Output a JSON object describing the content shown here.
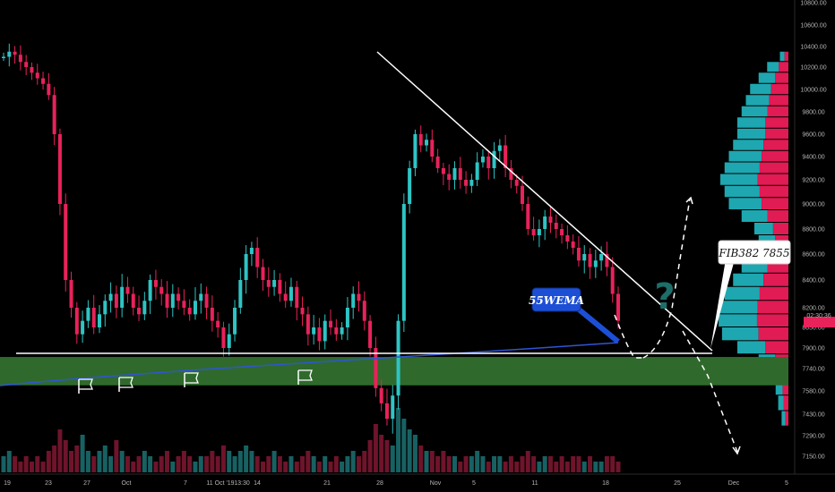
{
  "chart_data": {
    "type": "candlestick",
    "colors": {
      "up": "#2ec4c4",
      "down": "#e8225a",
      "support_zone": "#2f6a2c",
      "ema": "#2f55d4",
      "current_price_bg": "#e8225a",
      "volume_profile_up": "#1ea7b0",
      "volume_profile_down": "#e11b54",
      "background": "#000000"
    },
    "y_axis": {
      "scale": "linear",
      "range": [
        7100,
        10880
      ],
      "tick_labels": [
        "10800.00",
        "10600.00",
        "10400.00",
        "10200.00",
        "10000.00",
        "9800.00",
        "9600.00",
        "9400.00",
        "9200.00",
        "9000.00",
        "8800.00",
        "8600.00",
        "8400.00",
        "8200.00",
        "8050.00",
        "7900.00",
        "7740.00",
        "7580.00",
        "7430.00",
        "7290.00",
        "7150.00"
      ],
      "current_price_label": "02:30:36"
    },
    "x_axis": {
      "tick_labels": [
        "19",
        "23",
        "27",
        "Oct",
        "7",
        "11 Oct '19",
        "13:30",
        "14",
        "21",
        "28",
        "Nov",
        "5",
        "11",
        "18",
        "25",
        "Dec",
        "5"
      ],
      "selected_label": "11 Oct '19   13:30"
    },
    "price_series": [
      10300,
      10350,
      10320,
      10250,
      10200,
      10150,
      10100,
      10050,
      9950,
      9600,
      9000,
      8400,
      8200,
      8000,
      8100,
      8200,
      8050,
      8150,
      8250,
      8300,
      8200,
      8350,
      8300,
      8200,
      8150,
      8250,
      8400,
      8350,
      8300,
      8200,
      8300,
      8250,
      8200,
      8150,
      8250,
      8300,
      8200,
      8100,
      8050,
      7900,
      8000,
      8200,
      8400,
      8600,
      8650,
      8500,
      8400,
      8350,
      8400,
      8300,
      8250,
      8350,
      8200,
      8150,
      8000,
      8050,
      7950,
      8100,
      8050,
      8000,
      8050,
      8200,
      8300,
      8250,
      8100,
      7900,
      7600,
      7500,
      7400,
      7550,
      8100,
      9000,
      9300,
      9600,
      9500,
      9550,
      9400,
      9300,
      9250,
      9200,
      9300,
      9200,
      9150,
      9200,
      9350,
      9400,
      9300,
      9450,
      9500,
      9300,
      9200,
      9150,
      9000,
      8800,
      8750,
      8800,
      8900,
      8850,
      8800,
      8750,
      8700,
      8650,
      8550,
      8600,
      8500,
      8550,
      8600,
      8500,
      8300,
      8100
    ],
    "volume_series": [
      3,
      4,
      3,
      2,
      3,
      2,
      3,
      2,
      4,
      5,
      8,
      6,
      4,
      5,
      7,
      4,
      3,
      4,
      5,
      3,
      6,
      4,
      3,
      2,
      3,
      4,
      3,
      2,
      3,
      4,
      2,
      3,
      4,
      3,
      2,
      3,
      3,
      4,
      3,
      5,
      4,
      3,
      4,
      5,
      4,
      3,
      2,
      3,
      4,
      3,
      2,
      3,
      2,
      3,
      4,
      3,
      2,
      3,
      2,
      3,
      2,
      3,
      4,
      3,
      4,
      6,
      9,
      7,
      6,
      5,
      12,
      10,
      8,
      7,
      5,
      4,
      4,
      3,
      4,
      3,
      3,
      2,
      3,
      3,
      4,
      3,
      2,
      3,
      3,
      2,
      3,
      2,
      3,
      4,
      3,
      2,
      3,
      3,
      2,
      3,
      2,
      3,
      3,
      2,
      3,
      2,
      2,
      3,
      3,
      2
    ],
    "volume_profile": [
      {
        "price": 10300,
        "volume": 10
      },
      {
        "price": 10200,
        "volume": 25
      },
      {
        "price": 10100,
        "volume": 35
      },
      {
        "price": 10000,
        "volume": 45
      },
      {
        "price": 9900,
        "volume": 50
      },
      {
        "price": 9800,
        "volume": 55
      },
      {
        "price": 9700,
        "volume": 60
      },
      {
        "price": 9600,
        "volume": 60
      },
      {
        "price": 9500,
        "volume": 65
      },
      {
        "price": 9400,
        "volume": 70
      },
      {
        "price": 9300,
        "volume": 75
      },
      {
        "price": 9200,
        "volume": 80
      },
      {
        "price": 9100,
        "volume": 75
      },
      {
        "price": 9000,
        "volume": 70
      },
      {
        "price": 8900,
        "volume": 55
      },
      {
        "price": 8800,
        "volume": 40
      },
      {
        "price": 8700,
        "volume": 35
      },
      {
        "price": 8600,
        "volume": 45
      },
      {
        "price": 8500,
        "volume": 55
      },
      {
        "price": 8400,
        "volume": 65
      },
      {
        "price": 8300,
        "volume": 75
      },
      {
        "price": 8200,
        "volume": 80
      },
      {
        "price": 8100,
        "volume": 82
      },
      {
        "price": 8000,
        "volume": 78
      },
      {
        "price": 7900,
        "volume": 60
      },
      {
        "price": 7800,
        "volume": 35
      },
      {
        "price": 7700,
        "volume": 20
      },
      {
        "price": 7600,
        "volume": 15
      },
      {
        "price": 7500,
        "volume": 12
      },
      {
        "price": 7400,
        "volume": 8
      }
    ],
    "annotations": {
      "fib_label": "FIB382 7855",
      "ema_label": "55WEMA",
      "question_mark": "?",
      "support_level": 7855,
      "support_zone": [
        7620,
        7830
      ]
    }
  }
}
